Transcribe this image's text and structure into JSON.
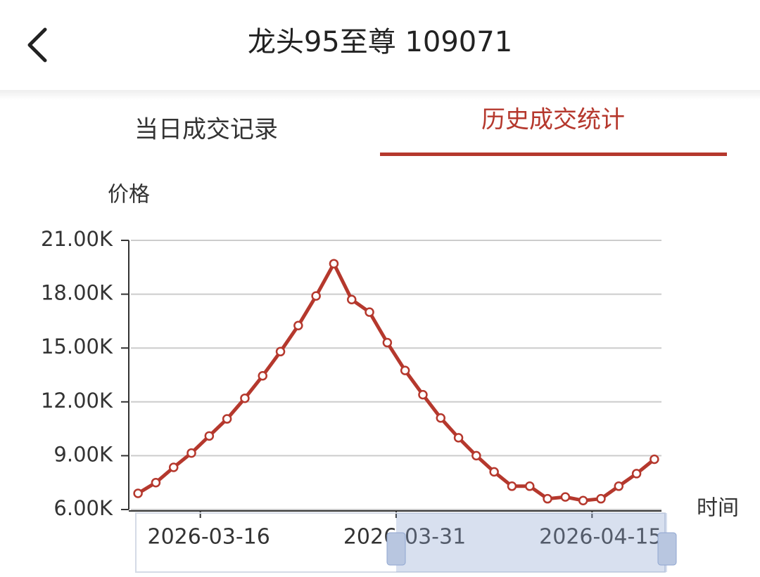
{
  "header": {
    "title": "龙头95至尊 109071"
  },
  "tabs": [
    "当日成交记录",
    "历史成交统计"
  ],
  "chart_data": {
    "type": "line",
    "y_axis_label": "价格",
    "x_axis_label": "时间",
    "color": "#b5382d",
    "grid": true,
    "values": [
      6900,
      7500,
      8350,
      9150,
      10100,
      11050,
      12200,
      13450,
      14800,
      16250,
      17900,
      19700,
      17700,
      17000,
      15300,
      13750,
      12400,
      11100,
      10000,
      9000,
      8100,
      7300,
      7300,
      6600,
      6700,
      6500,
      6600,
      7300,
      8000,
      8800
    ],
    "xlim": [
      -0.4,
      29.4
    ],
    "xticks": [
      {
        "value": 3.5,
        "label": "2026-03-16"
      },
      {
        "value": 14.5,
        "label": "2026-03-31"
      },
      {
        "value": 25.5,
        "label": "2026-04-15"
      }
    ],
    "ylim": [
      6000,
      21000
    ],
    "yticks": [
      {
        "value": 6000,
        "label": "6.00K"
      },
      {
        "value": 9000,
        "label": "9.00K"
      },
      {
        "value": 12000,
        "label": "12.00K"
      },
      {
        "value": 15000,
        "label": "15.00K"
      },
      {
        "value": 18000,
        "label": "18.00K"
      },
      {
        "value": 21000,
        "label": "21.00K"
      }
    ]
  }
}
